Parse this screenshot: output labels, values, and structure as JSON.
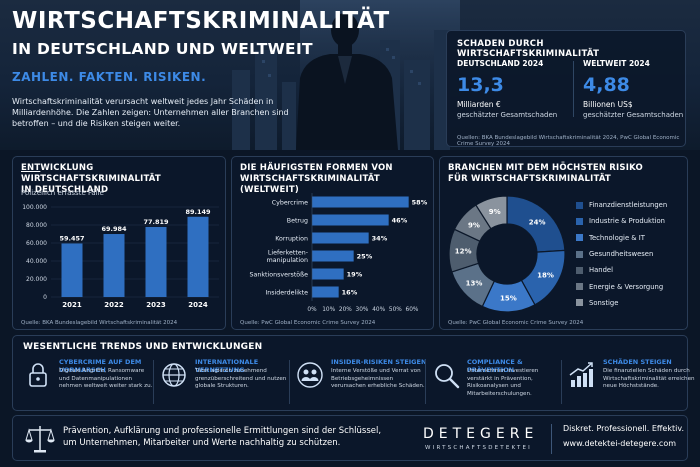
{
  "hero": {
    "title": "WIRTSCHAFTSKRIMINALITÄT",
    "subtitle": "IN DEUTSCHLAND UND WELTWEIT",
    "tagline": "ZAHLEN. FAKTEN. RISIKEN.",
    "description": "Wirtschaftskriminalität verursacht weltweit jedes Jahr Schäden in Milliardenhöhe. Die Zahlen zeigen: Unternehmen aller Branchen sind betroffen – und die Risiken steigen weiter."
  },
  "damage": {
    "title": "SCHADEN DURCH WIRTSCHAFTSKRIMINALITÄT",
    "de": {
      "label": "DEUTSCHLAND 2024",
      "value": "13,3",
      "unit": "Milliarden €",
      "desc": "geschätzter Gesamtschaden"
    },
    "world": {
      "label": "WELTWEIT 2024",
      "value": "4,88",
      "unit": "Billionen US$",
      "desc": "geschätzter Gesamtschaden"
    },
    "source": "Quellen: BKA Bundeslagebild Wirtschaftskriminalität 2024, PwC Global Economic Crime Survey 2024"
  },
  "panel_titles": {
    "development_prefix": "ENT",
    "development_rest": "WICKLUNG WIRTSCHAFTSKRIMINALITÄT",
    "development_line2": "IN DEUTSCHLAND",
    "development_sub": "Polizeilich erfasste Fälle",
    "development_source": "Quelle: BKA Bundeslagebild Wirtschaftskriminalität 2024",
    "forms_line1": "DIE HÄUFIGSTEN FORMEN VON",
    "forms_line2": "WIRTSCHAFTSKRIMINALITÄT (WELTWEIT)",
    "forms_source": "Quelle: PwC Global Economic Crime Survey 2024",
    "sectors_line1": "BRANCHEN MIT DEM HÖCHSTEN RISIKO",
    "sectors_line2": "FÜR WIRTSCHAFTSKRIMINALITÄT",
    "sectors_source": "Quelle: PwC Global Economic Crime Survey 2024"
  },
  "chart_data": [
    {
      "type": "bar",
      "categories": [
        "2021",
        "2022",
        "2023",
        "2024"
      ],
      "values": [
        59457,
        69984,
        77819,
        89149
      ],
      "value_labels": [
        "59.457",
        "69.984",
        "77.819",
        "89.149"
      ],
      "title": "ENTWICKLUNG WIRTSCHAFTSKRIMINALITÄT IN DEUTSCHLAND",
      "ylabel": "Polizeilich erfasste Fälle",
      "ylim": [
        0,
        100000
      ],
      "yticks": [
        "0",
        "20.000",
        "40.000",
        "60.000",
        "80.000",
        "100.000"
      ],
      "grid": true,
      "color": "#2f6fc1"
    },
    {
      "type": "bar",
      "orientation": "horizontal",
      "categories": [
        "Cybercrime",
        "Betrug",
        "Korruption",
        "Lieferketten-manipulation",
        "Sanktionsverstöße",
        "Insiderdelikte"
      ],
      "category_labels": [
        [
          "Cybercrime"
        ],
        [
          "Betrug"
        ],
        [
          "Korruption"
        ],
        [
          "Lieferketten-",
          "manipulation"
        ],
        [
          "Sanktionsverstöße"
        ],
        [
          "Insiderdelikte"
        ]
      ],
      "values": [
        58,
        46,
        34,
        25,
        19,
        16
      ],
      "value_labels": [
        "58%",
        "46%",
        "34%",
        "25%",
        "19%",
        "16%"
      ],
      "title": "DIE HÄUFIGSTEN FORMEN VON WIRTSCHAFTSKRIMINALITÄT (WELTWEIT)",
      "xlim": [
        0,
        60
      ],
      "xticks": [
        "0%",
        "10%",
        "20%",
        "30%",
        "40%",
        "50%",
        "60%"
      ],
      "color": "#2f6fc1"
    },
    {
      "type": "pie",
      "style": "donut",
      "categories": [
        "Finanzdienstleistungen",
        "Industrie & Produktion",
        "Technologie & IT",
        "Gesundheitswesen",
        "Handel",
        "Energie & Versorgung",
        "Sonstige"
      ],
      "values": [
        24,
        18,
        15,
        13,
        12,
        9,
        9
      ],
      "value_labels": [
        "24%",
        "18%",
        "15%",
        "13%",
        "12%",
        "9%",
        "9%"
      ],
      "colors": [
        "#1f4f8f",
        "#2a63ad",
        "#3b78c8",
        "#5b7189",
        "#4e5d6e",
        "#6b7785",
        "#8a939e"
      ],
      "title": "BRANCHEN MIT DEM HÖCHSTEN RISIKO FÜR WIRTSCHAFTSKRIMINALITÄT",
      "legend": "right"
    }
  ],
  "trends": {
    "title": "WESENTLICHE TRENDS UND ENTWICKLUNGEN",
    "items": [
      {
        "title": "CYBERCRIME AUF DEM VORMARSCH",
        "desc": "Digitale Angriffe, Ransomware und Datenmanipulationen nehmen weltweit weiter stark zu.",
        "icon": "lock-icon"
      },
      {
        "title": "INTERNATIONALE VERNETZUNG",
        "desc": "Täter agieren zunehmend grenzüberschreitend und nutzen globale Strukturen.",
        "icon": "globe-icon"
      },
      {
        "title": "INSIDER-RISIKEN STEIGEN",
        "desc": "Interne Verstöße und Verrat von Betriebsgeheimnissen verursachen erhebliche Schäden.",
        "icon": "people-icon"
      },
      {
        "title": "COMPLIANCE & PRÄVENTION",
        "desc": "Unternehmen investieren verstärkt in Prävention, Risikoanalysen und Mitarbeiterschulungen.",
        "icon": "magnifier-icon"
      },
      {
        "title": "SCHÄDEN STEIGEN",
        "desc": "Die finanziellen Schäden durch Wirtschaftskriminalität erreichen neue Höchststände.",
        "icon": "trend-up-icon"
      }
    ]
  },
  "footer": {
    "text": "Prävention, Aufklärung und professionelle Ermittlungen sind der Schlüssel, um Unternehmen, Mitarbeiter und Werte nachhaltig zu schützen.",
    "brand": "DETEGERE",
    "brand_sub": "WIRTSCHAFTSDETEKTEI",
    "slogan": "Diskret. Professionell. Effektiv.",
    "url": "www.detektei-detegere.com",
    "icon": "scales-icon"
  }
}
